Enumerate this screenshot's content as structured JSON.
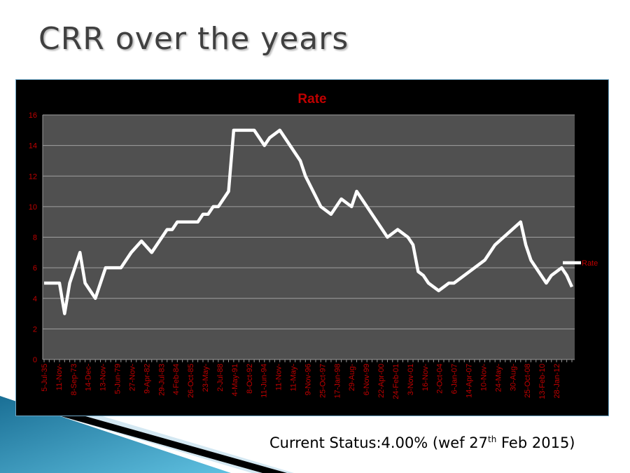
{
  "slide": {
    "title": "CRR over the years",
    "status_prefix": "Current Status:4.00% (wef 27",
    "status_sup": "th",
    "status_suffix": " Feb 2015)"
  },
  "colors": {
    "chart_bg": "#000000",
    "plot_bg": "#505050",
    "line": "#ffffff",
    "text": "#c00000",
    "grid": "#a0a0a0"
  },
  "chart_data": {
    "type": "line",
    "title": "Rate",
    "xlabel": "",
    "ylabel": "",
    "ylim": [
      0,
      16
    ],
    "yticks": [
      "0",
      "2",
      "4",
      "6",
      "8",
      "10",
      "12",
      "14",
      "16"
    ],
    "grid": true,
    "legend": {
      "position": "right",
      "entries": [
        "Rate"
      ]
    },
    "category_count": 104,
    "x_tick_labels": [
      "5-Jul-35",
      "11-Nov-",
      "8-Sep-73",
      "14-Dec-",
      "13-Nov-",
      "5-Jun-79",
      "27-Nov-",
      "9-Apr-82",
      "29-Jul-83",
      "4-Feb-84",
      "26-Oct-85",
      "23-May-",
      "2-Jul-88",
      "4-May-91",
      "8-Oct-92",
      "11-Jun-94",
      "11-Nov-",
      "11-May-",
      "9-Nov-96",
      "25-Oct-97",
      "17-Jan-98",
      "29-Aug-",
      "6-Nov-99",
      "22-Apr-00",
      "24-Feb-01",
      "3-Nov-01",
      "16-Nov-",
      "2-Oct-04",
      "6-Jan-07",
      "14-Apr-07",
      "10-Nov-",
      "24-May-",
      "30-Aug-",
      "25-Oct-08",
      "13-Feb-10",
      "28-Jan-12"
    ],
    "series": [
      {
        "name": "Rate",
        "points": [
          [
            0,
            5
          ],
          [
            3,
            5
          ],
          [
            4,
            3
          ],
          [
            5,
            5
          ],
          [
            7,
            7
          ],
          [
            8,
            5
          ],
          [
            10,
            4
          ],
          [
            12,
            6
          ],
          [
            15,
            6
          ],
          [
            17,
            7
          ],
          [
            19,
            7.75
          ],
          [
            21,
            7
          ],
          [
            24,
            8.5
          ],
          [
            25,
            8.5
          ],
          [
            26,
            9
          ],
          [
            30,
            9
          ],
          [
            31,
            9.5
          ],
          [
            32,
            9.5
          ],
          [
            33,
            10
          ],
          [
            34,
            10
          ],
          [
            36,
            11
          ],
          [
            37,
            15
          ],
          [
            41,
            15
          ],
          [
            43,
            14
          ],
          [
            44,
            14.5
          ],
          [
            46,
            15
          ],
          [
            50,
            13
          ],
          [
            51,
            12
          ],
          [
            54,
            10
          ],
          [
            56,
            9.5
          ],
          [
            58,
            10.5
          ],
          [
            60,
            10
          ],
          [
            61,
            11
          ],
          [
            67,
            8
          ],
          [
            69,
            8.5
          ],
          [
            71,
            8
          ],
          [
            72,
            7.5
          ],
          [
            73,
            5.75
          ],
          [
            74,
            5.5
          ],
          [
            75,
            5
          ],
          [
            77,
            4.5
          ],
          [
            79,
            5
          ],
          [
            80,
            5
          ],
          [
            86,
            6.5
          ],
          [
            88,
            7.5
          ],
          [
            93,
            9
          ],
          [
            94,
            7.5
          ],
          [
            95,
            6.5
          ],
          [
            98,
            5
          ],
          [
            99,
            5.5
          ],
          [
            101,
            6
          ],
          [
            102,
            5.5
          ],
          [
            103,
            4.75
          ]
        ]
      }
    ]
  }
}
